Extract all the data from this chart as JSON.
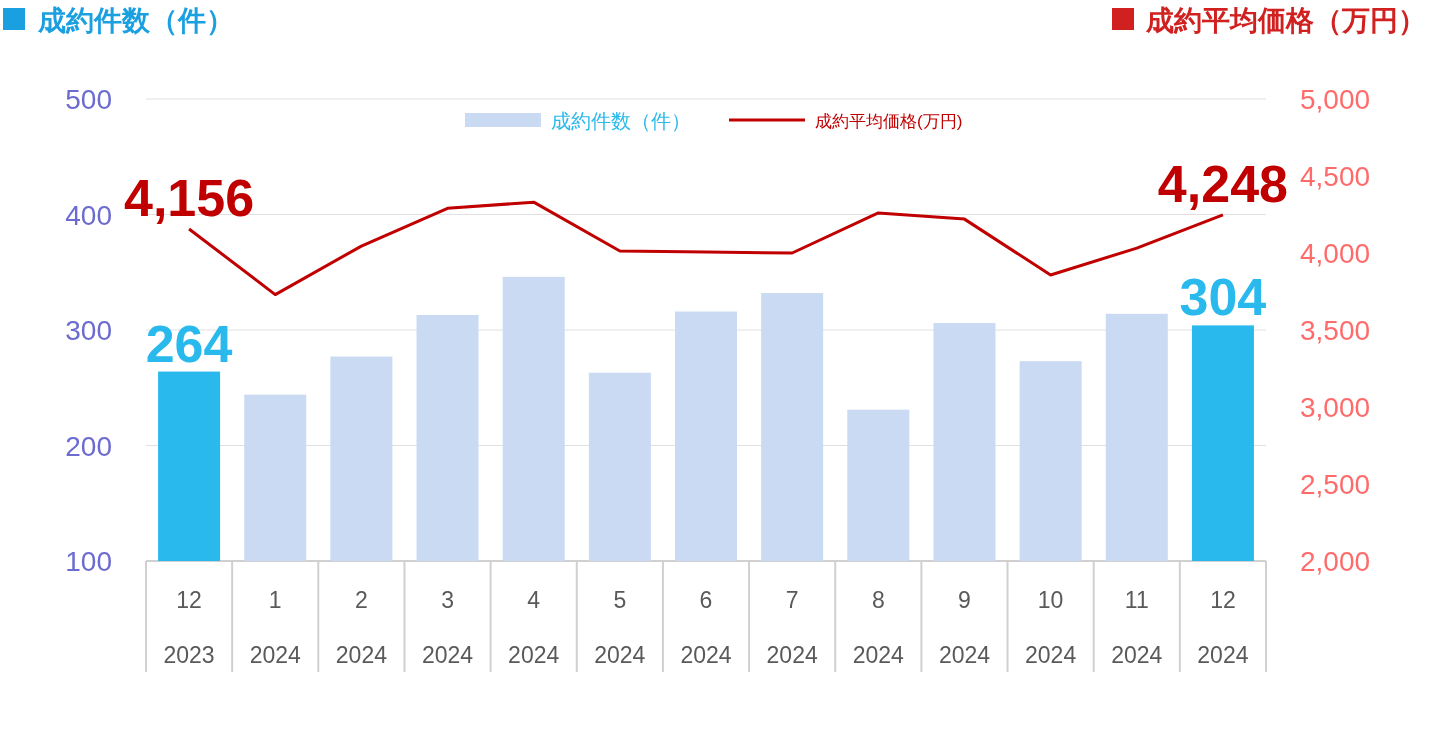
{
  "chart_data": {
    "type": "bar",
    "ylabel": "成約件数（件）",
    "y2label": "成約平均価格（万円）",
    "categories": [
      "12\n2023",
      "1\n2024",
      "2\n2024",
      "3\n2024",
      "4\n2024",
      "5\n2024",
      "6\n2024",
      "7\n2024",
      "8\n2024",
      "9\n2024",
      "10\n2024",
      "11\n2024",
      "12\n2024"
    ],
    "series": [
      {
        "name": "成約件数（件）",
        "color": "#c9daf2",
        "colors": [
          "#29b9ec",
          "#c9daf2",
          "#c9daf2",
          "#c9daf2",
          "#c9daf2",
          "#c9daf2",
          "#c9daf2",
          "#c9daf2",
          "#c9daf2",
          "#c9daf2",
          "#c9daf2",
          "#c9daf2",
          "#29b9ec"
        ],
        "values": [
          264,
          244,
          277,
          313,
          346,
          263,
          316,
          332,
          231,
          306,
          273,
          314,
          304
        ],
        "value_labels": [
          "264",
          null,
          null,
          null,
          null,
          null,
          null,
          null,
          null,
          null,
          null,
          null,
          "304"
        ]
      },
      {
        "name": "成約平均価格(万円)",
        "type": "line",
        "axis": "y2",
        "color": "#c00000",
        "values": [
          4156,
          3730,
          4045,
          4290,
          4330,
          4013,
          4006,
          4000,
          4260,
          4220,
          3857,
          4032,
          4248
        ],
        "value_labels": [
          "4,156",
          null,
          null,
          null,
          null,
          null,
          null,
          null,
          null,
          null,
          null,
          null,
          "4,248"
        ]
      }
    ],
    "ylim": [
      100,
      500
    ],
    "yticks": [
      100,
      200,
      300,
      400,
      500
    ],
    "y2lim": [
      2000,
      5000
    ],
    "y2ticks": [
      {
        "value": 2000,
        "label": "2,000"
      },
      {
        "value": 2500,
        "label": "2,500"
      },
      {
        "value": 3000,
        "label": "3,000"
      },
      {
        "value": 3500,
        "label": "3,500"
      },
      {
        "value": 4000,
        "label": "4,000"
      },
      {
        "value": 4500,
        "label": "4,500"
      },
      {
        "value": 5000,
        "label": "5,000"
      }
    ],
    "grid": "y",
    "legend": "top"
  }
}
